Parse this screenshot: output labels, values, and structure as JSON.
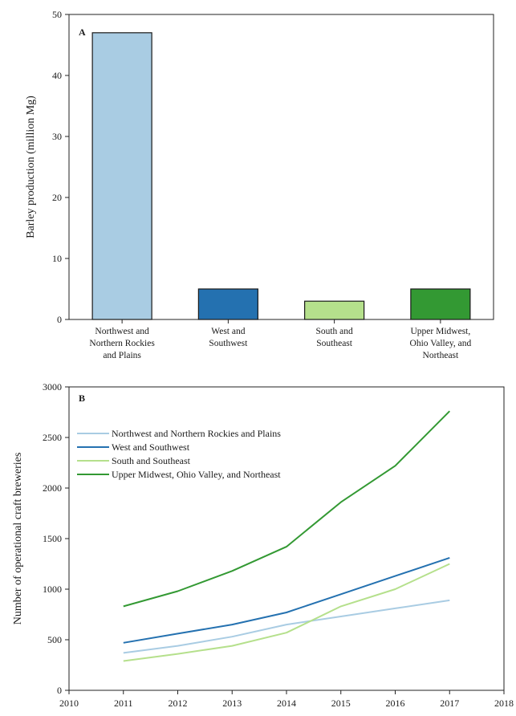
{
  "chart_data": [
    {
      "type": "bar",
      "panel_label": "A",
      "ylabel": "Barley production (million Mg)",
      "ylim": [
        0,
        50
      ],
      "yticks": [
        0,
        10,
        20,
        30,
        40,
        50
      ],
      "categories": [
        [
          "Northwest and",
          "Northern Rockies",
          "and Plains"
        ],
        [
          "West and",
          "Southwest"
        ],
        [
          "South and",
          "Southeast"
        ],
        [
          "Upper Midwest,",
          "Ohio Valley, and",
          "Northeast"
        ]
      ],
      "values": [
        47,
        5,
        3,
        5
      ],
      "colors": [
        "#a9cce3",
        "#2471b0",
        "#b5e08c",
        "#339933"
      ],
      "grid": false
    },
    {
      "type": "line",
      "panel_label": "B",
      "ylabel": "Number of operational craft breweries",
      "xlim": [
        2010,
        2018
      ],
      "ylim": [
        0,
        3000
      ],
      "xticks": [
        2010,
        2011,
        2012,
        2013,
        2014,
        2015,
        2016,
        2017,
        2018
      ],
      "yticks": [
        0,
        500,
        1000,
        1500,
        2000,
        2500,
        3000
      ],
      "x": [
        2011,
        2012,
        2013,
        2014,
        2015,
        2016,
        2017
      ],
      "legend": "top-left",
      "grid": false,
      "series": [
        {
          "name": "Northwest and Northern Rockies and Plains",
          "color": "#a9cce3",
          "values": [
            370,
            440,
            530,
            650,
            730,
            810,
            890
          ]
        },
        {
          "name": "West and Southwest",
          "color": "#2471b0",
          "values": [
            470,
            560,
            650,
            770,
            950,
            1130,
            1310
          ]
        },
        {
          "name": "South and Southeast",
          "color": "#b5e08c",
          "values": [
            290,
            360,
            440,
            570,
            830,
            1000,
            1250
          ]
        },
        {
          "name": "Upper Midwest, Ohio Valley, and Northeast",
          "color": "#339933",
          "values": [
            830,
            980,
            1180,
            1420,
            1860,
            2220,
            2760
          ]
        }
      ]
    }
  ]
}
